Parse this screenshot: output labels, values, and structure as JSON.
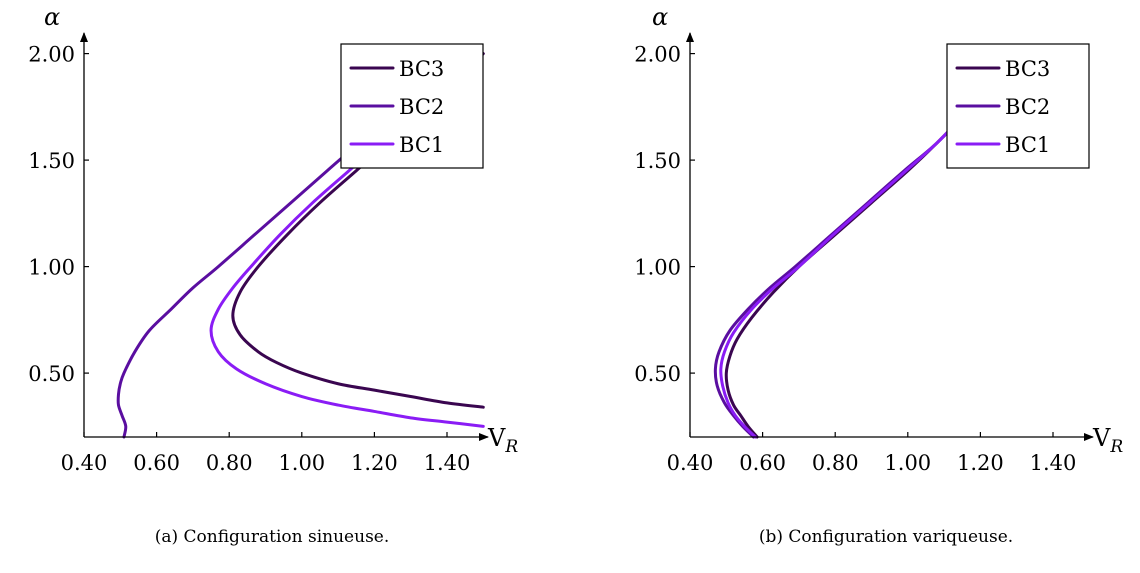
{
  "charts": [
    {
      "panel_id": "a",
      "caption": "(a)  Configuration sinueuse.",
      "chart_data": {
        "type": "line",
        "xlabel_main": "V",
        "xlabel_sub": "R",
        "ylabel": "α",
        "xlim": [
          0.4,
          1.5
        ],
        "ylim": [
          0.2,
          2.05
        ],
        "xticks": [
          "0.40",
          "0.60",
          "0.80",
          "1.00",
          "1.20",
          "1.40"
        ],
        "xtick_values": [
          0.4,
          0.6,
          0.8,
          1.0,
          1.2,
          1.4
        ],
        "yticks": [
          "0.50",
          "1.00",
          "1.50",
          "2.00"
        ],
        "ytick_values": [
          0.5,
          1.0,
          1.5,
          2.0
        ],
        "legend_position": "top-right",
        "grid": false,
        "series": [
          {
            "name": "BC3",
            "color": "#3a0650",
            "points": [
              [
                1.5,
                0.34
              ],
              [
                1.4,
                0.36
              ],
              [
                1.3,
                0.39
              ],
              [
                1.2,
                0.42
              ],
              [
                1.1,
                0.45
              ],
              [
                1.0,
                0.5
              ],
              [
                0.93,
                0.55
              ],
              [
                0.88,
                0.6
              ],
              [
                0.83,
                0.68
              ],
              [
                0.81,
                0.77
              ],
              [
                0.83,
                0.88
              ],
              [
                0.88,
                1.0
              ],
              [
                0.96,
                1.15
              ],
              [
                1.05,
                1.3
              ],
              [
                1.15,
                1.45
              ],
              [
                1.25,
                1.6
              ],
              [
                1.35,
                1.76
              ],
              [
                1.45,
                1.92
              ],
              [
                1.5,
                2.0
              ]
            ]
          },
          {
            "name": "BC2",
            "color": "#5a0ea0",
            "points": [
              [
                0.51,
                0.2
              ],
              [
                0.515,
                0.25
              ],
              [
                0.505,
                0.3
              ],
              [
                0.495,
                0.35
              ],
              [
                0.495,
                0.4
              ],
              [
                0.5,
                0.45
              ],
              [
                0.51,
                0.5
              ],
              [
                0.54,
                0.6
              ],
              [
                0.58,
                0.7
              ],
              [
                0.64,
                0.8
              ],
              [
                0.7,
                0.9
              ],
              [
                0.77,
                1.0
              ],
              [
                0.87,
                1.15
              ],
              [
                0.97,
                1.3
              ],
              [
                1.07,
                1.45
              ],
              [
                1.17,
                1.6
              ],
              [
                1.27,
                1.76
              ],
              [
                1.37,
                1.92
              ],
              [
                1.45,
                2.0
              ]
            ]
          },
          {
            "name": "BC1",
            "color": "#8a1cf5",
            "points": [
              [
                1.5,
                0.25
              ],
              [
                1.4,
                0.27
              ],
              [
                1.3,
                0.29
              ],
              [
                1.2,
                0.32
              ],
              [
                1.1,
                0.35
              ],
              [
                1.0,
                0.39
              ],
              [
                0.9,
                0.45
              ],
              [
                0.82,
                0.52
              ],
              [
                0.77,
                0.6
              ],
              [
                0.75,
                0.7
              ],
              [
                0.77,
                0.8
              ],
              [
                0.81,
                0.9
              ],
              [
                0.86,
                1.0
              ],
              [
                0.94,
                1.15
              ],
              [
                1.03,
                1.3
              ],
              [
                1.13,
                1.45
              ],
              [
                1.23,
                1.6
              ],
              [
                1.33,
                1.76
              ],
              [
                1.43,
                1.92
              ],
              [
                1.48,
                2.0
              ]
            ]
          }
        ]
      }
    },
    {
      "panel_id": "b",
      "caption": "(b) Configuration variqueuse.",
      "chart_data": {
        "type": "line",
        "xlabel_main": "V",
        "xlabel_sub": "R",
        "ylabel": "α",
        "xlim": [
          0.4,
          1.5
        ],
        "ylim": [
          0.2,
          2.05
        ],
        "xticks": [
          "0.40",
          "0.60",
          "0.80",
          "1.00",
          "1.20",
          "1.40"
        ],
        "xtick_values": [
          0.4,
          0.6,
          0.8,
          1.0,
          1.2,
          1.4
        ],
        "yticks": [
          "0.50",
          "1.00",
          "1.50",
          "2.00"
        ],
        "ytick_values": [
          0.5,
          1.0,
          1.5,
          2.0
        ],
        "legend_position": "top-right",
        "grid": false,
        "series": [
          {
            "name": "BC3",
            "color": "#3a0650",
            "points": [
              [
                0.585,
                0.2
              ],
              [
                0.56,
                0.25
              ],
              [
                0.54,
                0.3
              ],
              [
                0.52,
                0.35
              ],
              [
                0.505,
                0.42
              ],
              [
                0.5,
                0.5
              ],
              [
                0.51,
                0.58
              ],
              [
                0.53,
                0.66
              ],
              [
                0.57,
                0.76
              ],
              [
                0.63,
                0.88
              ],
              [
                0.7,
                1.0
              ],
              [
                0.8,
                1.15
              ],
              [
                0.9,
                1.3
              ],
              [
                1.0,
                1.45
              ],
              [
                1.08,
                1.58
              ],
              [
                1.16,
                1.72
              ]
            ]
          },
          {
            "name": "BC2",
            "color": "#5a0ea0",
            "points": [
              [
                0.575,
                0.2
              ],
              [
                0.545,
                0.25
              ],
              [
                0.52,
                0.3
              ],
              [
                0.495,
                0.36
              ],
              [
                0.475,
                0.44
              ],
              [
                0.47,
                0.52
              ],
              [
                0.48,
                0.6
              ],
              [
                0.51,
                0.7
              ],
              [
                0.56,
                0.8
              ],
              [
                0.62,
                0.9
              ],
              [
                0.69,
                1.0
              ],
              [
                0.79,
                1.15
              ],
              [
                0.89,
                1.3
              ],
              [
                0.99,
                1.45
              ],
              [
                1.08,
                1.58
              ],
              [
                1.16,
                1.72
              ]
            ]
          },
          {
            "name": "BC1",
            "color": "#8a1cf5",
            "points": [
              [
                0.58,
                0.2
              ],
              [
                0.55,
                0.25
              ],
              [
                0.525,
                0.3
              ],
              [
                0.505,
                0.36
              ],
              [
                0.49,
                0.44
              ],
              [
                0.485,
                0.52
              ],
              [
                0.495,
                0.6
              ],
              [
                0.52,
                0.69
              ],
              [
                0.57,
                0.8
              ],
              [
                0.63,
                0.9
              ],
              [
                0.7,
                1.0
              ],
              [
                0.795,
                1.15
              ],
              [
                0.895,
                1.3
              ],
              [
                0.995,
                1.45
              ],
              [
                1.08,
                1.58
              ],
              [
                1.16,
                1.72
              ]
            ]
          }
        ]
      }
    }
  ]
}
